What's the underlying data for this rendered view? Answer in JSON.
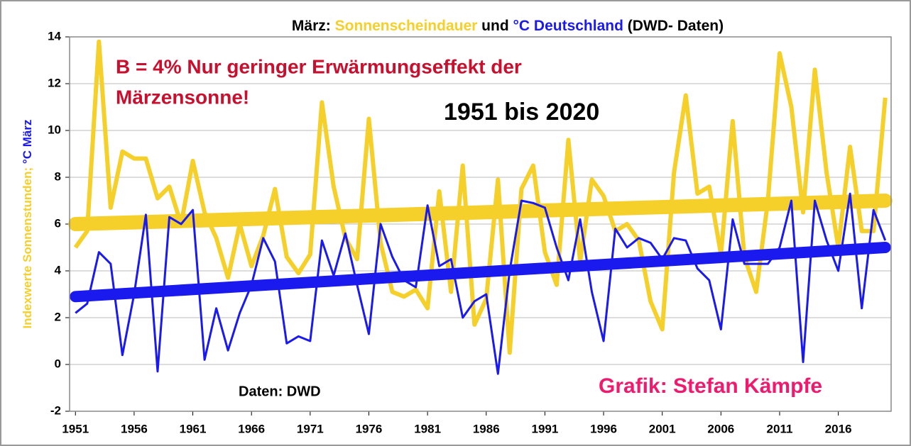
{
  "chart_data": {
    "type": "line",
    "title_prefix": "März:",
    "title_join": "und",
    "title_suffix": "(DWD- Daten)",
    "ylabel_parts": [
      "Indexwerte Sonnenstunden;",
      "°C März"
    ],
    "annotations": [
      "B = 4%  Nur geringer Erwärmungseffekt der",
      "Märzensonne!",
      "1951 bis 2020",
      "Daten: DWD",
      "Grafik: Stefan Kämpfe"
    ],
    "x": [
      1951,
      1952,
      1953,
      1954,
      1955,
      1956,
      1957,
      1958,
      1959,
      1960,
      1961,
      1962,
      1963,
      1964,
      1965,
      1966,
      1967,
      1968,
      1969,
      1970,
      1971,
      1972,
      1973,
      1974,
      1975,
      1976,
      1977,
      1978,
      1979,
      1980,
      1981,
      1982,
      1983,
      1984,
      1985,
      1986,
      1987,
      1988,
      1989,
      1990,
      1991,
      1992,
      1993,
      1994,
      1995,
      1996,
      1997,
      1998,
      1999,
      2000,
      2001,
      2002,
      2003,
      2004,
      2005,
      2006,
      2007,
      2008,
      2009,
      2010,
      2011,
      2012,
      2013,
      2014,
      2015,
      2016,
      2017,
      2018,
      2019,
      2020
    ],
    "series": [
      {
        "name": "Sonnenscheindauer",
        "color": "#f5cf2a",
        "trend": [
          6.0,
          7.0
        ],
        "values": [
          5.0,
          5.7,
          13.8,
          6.7,
          9.1,
          8.8,
          8.8,
          7.1,
          7.6,
          6.0,
          8.7,
          6.5,
          5.4,
          3.7,
          6.0,
          4.2,
          5.5,
          7.5,
          4.6,
          3.9,
          4.7,
          11.2,
          7.6,
          5.4,
          4.5,
          10.5,
          5.2,
          3.1,
          2.9,
          3.2,
          2.4,
          7.4,
          3.1,
          8.5,
          1.7,
          2.8,
          7.9,
          0.5,
          7.5,
          8.5,
          4.8,
          3.4,
          9.6,
          4.4,
          7.9,
          7.2,
          5.7,
          6.0,
          5.3,
          2.7,
          1.5,
          8.2,
          11.5,
          7.3,
          7.6,
          4.7,
          10.4,
          4.6,
          3.1,
          7.0,
          13.3,
          11.0,
          6.5,
          12.6,
          8.2,
          5.0,
          9.3,
          5.7,
          5.7,
          11.4
        ]
      },
      {
        "name": "°C Deutschland",
        "color": "#1a1aee",
        "trend": [
          2.9,
          5.0
        ],
        "values": [
          2.2,
          2.6,
          4.8,
          4.3,
          0.4,
          3.0,
          6.4,
          -0.3,
          6.3,
          6.0,
          6.6,
          0.2,
          2.4,
          0.6,
          2.2,
          3.4,
          5.4,
          4.4,
          0.9,
          1.2,
          1.0,
          5.3,
          3.8,
          5.6,
          3.4,
          1.3,
          6.0,
          4.6,
          3.6,
          3.3,
          6.8,
          4.2,
          4.5,
          2.0,
          2.7,
          3.0,
          -0.4,
          4.0,
          7.0,
          6.9,
          6.7,
          5.0,
          3.6,
          6.2,
          3.1,
          1.0,
          5.8,
          5.0,
          5.4,
          5.2,
          4.5,
          5.4,
          5.3,
          4.1,
          3.6,
          1.5,
          6.2,
          4.3,
          4.3,
          4.3,
          5.0,
          7.0,
          0.1,
          7.0,
          5.3,
          4.0,
          7.3,
          2.4,
          6.6,
          5.3
        ]
      }
    ],
    "xlim": [
      1950.5,
      2020.5
    ],
    "xticks": [
      1951,
      1956,
      1961,
      1966,
      1971,
      1976,
      1981,
      1986,
      1991,
      1996,
      2001,
      2006,
      2011,
      2016
    ],
    "ylim": [
      -2,
      14
    ],
    "yticks": [
      -2,
      0,
      2,
      4,
      6,
      8,
      10,
      12,
      14
    ],
    "grid": true
  }
}
